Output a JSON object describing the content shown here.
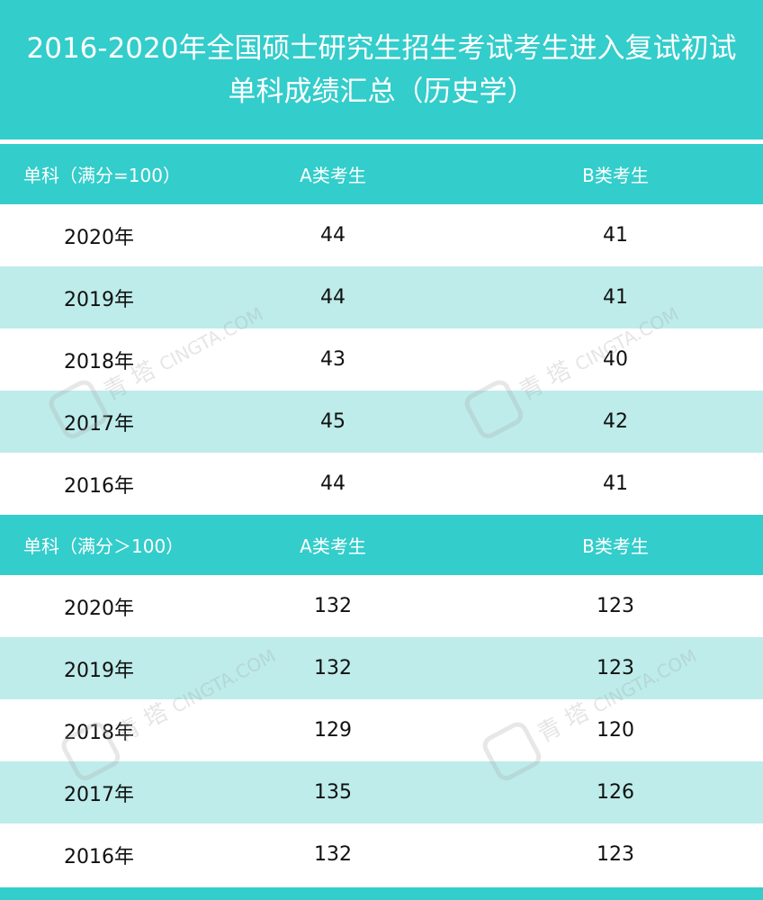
{
  "title": {
    "line1": "2016-2020年全国硕士研究生招生考试考生进入复试初试",
    "line2": "单科成绩汇总（历史学）"
  },
  "sections": [
    {
      "header": {
        "col1": "单科（满分=100）",
        "col2": "A类考生",
        "col3": "B类考生"
      },
      "rows": [
        {
          "year": "2020年",
          "a": "44",
          "b": "41"
        },
        {
          "year": "2019年",
          "a": "44",
          "b": "41"
        },
        {
          "year": "2018年",
          "a": "43",
          "b": "40"
        },
        {
          "year": "2017年",
          "a": "45",
          "b": "42"
        },
        {
          "year": "2016年",
          "a": "44",
          "b": "41"
        }
      ]
    },
    {
      "header": {
        "col1": "单科（满分＞100）",
        "col2": "A类考生",
        "col3": "B类考生"
      },
      "rows": [
        {
          "year": "2020年",
          "a": "132",
          "b": "123"
        },
        {
          "year": "2019年",
          "a": "132",
          "b": "123"
        },
        {
          "year": "2018年",
          "a": "129",
          "b": "120"
        },
        {
          "year": "2017年",
          "a": "135",
          "b": "126"
        },
        {
          "year": "2016年",
          "a": "132",
          "b": "123"
        }
      ]
    }
  ],
  "watermark": {
    "brand": "青 塔",
    "site": "CINGTA.COM",
    "icon": "qingta-logo-icon"
  },
  "colors": {
    "header": "#33cdcb",
    "stripe": "#bdecea"
  }
}
